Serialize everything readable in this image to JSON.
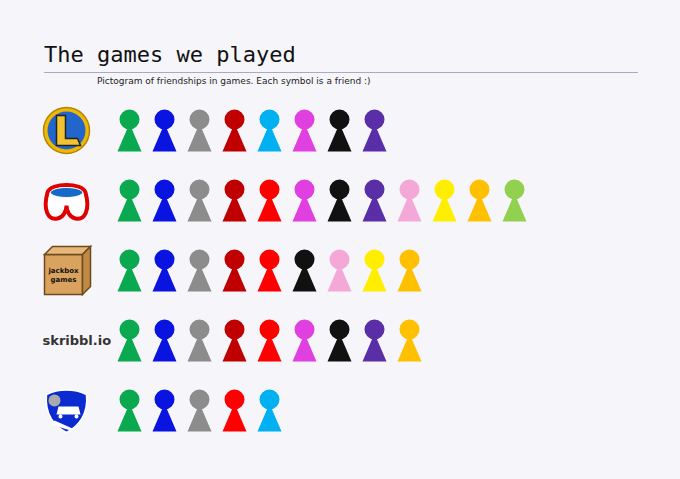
{
  "chart_data": {
    "type": "pictogram",
    "title": "The games we played",
    "subtitle": "Pictogram of friendships in games. Each symbol is a friend :)",
    "categories": [
      null,
      null,
      "jackbox games",
      "skribbl.io",
      null
    ],
    "values": [
      8,
      12,
      9,
      9,
      5
    ],
    "colors": [
      [
        "#0aa84f",
        "#0a14e0",
        "#8c8c8c",
        "#c00000",
        "#00b0f0",
        "#e040e0",
        "#111111",
        "#5a2ea6"
      ],
      [
        "#0aa84f",
        "#0a14e0",
        "#8c8c8c",
        "#c00000",
        "#ff0000",
        "#e040e0",
        "#111111",
        "#5a2ea6",
        "#f4a8d8",
        "#ffee00",
        "#ffc000",
        "#92d050"
      ],
      [
        "#0aa84f",
        "#0a14e0",
        "#8c8c8c",
        "#c00000",
        "#ff0000",
        "#111111",
        "#f4a8d8",
        "#ffee00",
        "#ffc000"
      ],
      [
        "#0aa84f",
        "#0a14e0",
        "#8c8c8c",
        "#c00000",
        "#ff0000",
        "#e040e0",
        "#111111",
        "#5a2ea6",
        "#ffc000"
      ],
      [
        "#0aa84f",
        "#0a14e0",
        "#8c8c8c",
        "#ff0000",
        "#00b0f0"
      ]
    ],
    "tick_labels": "y"
  }
}
